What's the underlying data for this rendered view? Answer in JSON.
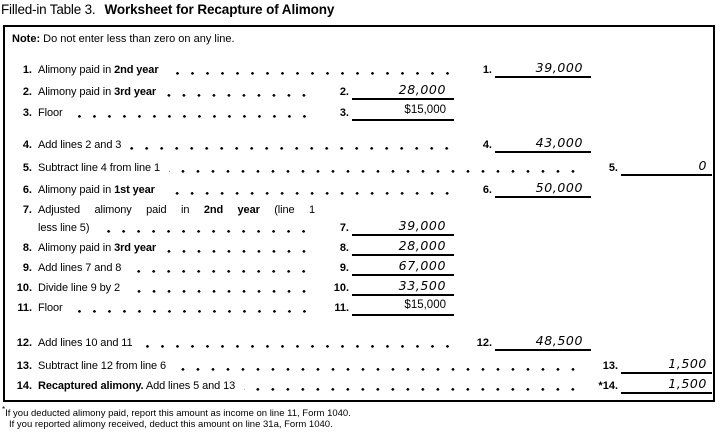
{
  "title": {
    "prefix": "Filled-in Table 3.",
    "main": "Worksheet for Recapture of Alimony"
  },
  "note": {
    "label": "Note:",
    "text": " Do not enter less than zero on any line."
  },
  "colors": {
    "ink": "#000000",
    "paper": "#ffffff"
  },
  "rows": [
    {
      "num": "1.",
      "pre": "Alimony paid in ",
      "bold": "2nd year",
      "post": "",
      "ans_num": "1.",
      "value": "39,000",
      "col": "b",
      "style": "hand"
    },
    {
      "num": "2.",
      "pre": "Alimony paid in ",
      "bold": "3rd year",
      "post": "",
      "ans_num": "2.",
      "value": "28,000",
      "col": "a",
      "style": "hand"
    },
    {
      "num": "3.",
      "pre": "Floor",
      "bold": "",
      "post": "",
      "ans_num": "3.",
      "value": "$15,000",
      "col": "a",
      "style": "print"
    },
    {
      "num": "4.",
      "pre": "Add lines 2 and 3",
      "bold": "",
      "post": "",
      "ans_num": "4.",
      "value": "43,000",
      "col": "b",
      "style": "hand"
    },
    {
      "num": "5.",
      "pre": "Subtract line 4 from line 1",
      "bold": "",
      "post": "",
      "ans_num": "5.",
      "value": "0",
      "col": "c",
      "style": "hand"
    },
    {
      "num": "6.",
      "pre": "Alimony paid in ",
      "bold": "1st year",
      "post": "",
      "ans_num": "6.",
      "value": "50,000",
      "col": "b",
      "style": "hand"
    },
    {
      "num": "7.",
      "pre": "Adjusted alimony paid in ",
      "bold": "2nd year",
      "post": " (line 1",
      "line2": "less line 5)",
      "ans_num": "7.",
      "value": "39,000",
      "col": "a",
      "style": "hand"
    },
    {
      "num": "8.",
      "pre": "Alimony paid in ",
      "bold": "3rd year",
      "post": "",
      "ans_num": "8.",
      "value": "28,000",
      "col": "a",
      "style": "hand"
    },
    {
      "num": "9.",
      "pre": "Add lines 7 and 8",
      "bold": "",
      "post": "",
      "ans_num": "9.",
      "value": "67,000",
      "col": "a",
      "style": "hand"
    },
    {
      "num": "10.",
      "pre": "Divide line 9 by 2",
      "bold": "",
      "post": "",
      "ans_num": "10.",
      "value": "33,500",
      "col": "a",
      "style": "hand"
    },
    {
      "num": "11.",
      "pre": "Floor",
      "bold": "",
      "post": "",
      "ans_num": "11.",
      "value": "$15,000",
      "col": "a",
      "style": "print"
    },
    {
      "num": "12.",
      "pre": "Add lines 10 and 11",
      "bold": "",
      "post": "",
      "ans_num": "12.",
      "value": "48,500",
      "col": "b",
      "style": "hand"
    },
    {
      "num": "13.",
      "pre": "Subtract line 12 from line 6",
      "bold": "",
      "post": "",
      "ans_num": "13.",
      "value": "1,500",
      "col": "c",
      "style": "hand"
    },
    {
      "num": "14.",
      "pre": "",
      "bold": "Recaptured alimony.",
      "post": " Add lines 5 and 13",
      "ans_num": "*14.",
      "value": "1,500",
      "col": "c",
      "style": "hand"
    }
  ],
  "footnote": {
    "marker": "*",
    "line1": "If you deducted alimony paid, report this amount as income on line 11, Form 1040.",
    "line2": "If you reported alimony received, deduct this amount on line 31a, Form 1040."
  }
}
